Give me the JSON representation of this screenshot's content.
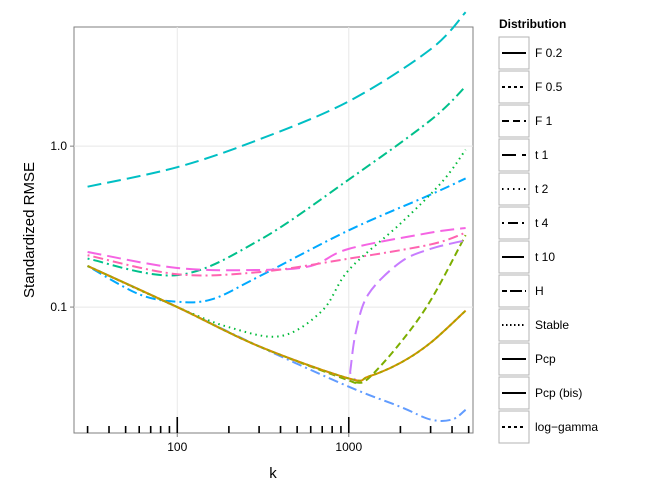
{
  "chart_data": {
    "type": "line",
    "title": "",
    "xlabel": "k",
    "ylabel": "Standardized RMSE",
    "x_scale": "log10",
    "y_scale": "log10",
    "xlim": [
      25,
      5300
    ],
    "ylim": [
      0.0165,
      5.5
    ],
    "x_ticks": [
      100,
      1000
    ],
    "x_tick_labels": [
      "100",
      "1000"
    ],
    "y_ticks": [
      0.1,
      1.0
    ],
    "y_tick_labels": [
      "0.1",
      "1.0"
    ],
    "grid": true,
    "rug": {
      "major": [
        100,
        1000
      ],
      "minor": [
        30,
        40,
        50,
        60,
        70,
        80,
        90,
        200,
        300,
        400,
        500,
        600,
        700,
        800,
        900,
        2000,
        3000,
        4000,
        5000
      ]
    },
    "legend": {
      "title": "Distribution",
      "position": "right",
      "entries": [
        {
          "label": "F 0.2",
          "linetype": "solid"
        },
        {
          "label": "F 0.5",
          "linetype": "dashed-short"
        },
        {
          "label": "F 1",
          "linetype": "dashed"
        },
        {
          "label": "t 1",
          "linetype": "longdash"
        },
        {
          "label": "t 2",
          "linetype": "dotted"
        },
        {
          "label": "t 4",
          "linetype": "dotdash"
        },
        {
          "label": "t 10",
          "linetype": "longdash-long"
        },
        {
          "label": "H",
          "linetype": "twodash"
        },
        {
          "label": "Stable",
          "linetype": "dotted-dense"
        },
        {
          "label": "Pcp",
          "linetype": "solid"
        },
        {
          "label": "Pcp (bis)",
          "linetype": "solid"
        },
        {
          "label": "log−gamma",
          "linetype": "dashed-short"
        }
      ]
    },
    "series": [
      {
        "name": "t 1",
        "color": "#00BFC4",
        "linetype": "longdash",
        "x": [
          30,
          100,
          300,
          1000,
          3000,
          4800
        ],
        "y": [
          0.56,
          0.74,
          1.1,
          1.9,
          4.0,
          6.8
        ]
      },
      {
        "name": "t 2",
        "color": "#00C08B",
        "linetype": "dotdash",
        "x": [
          30,
          100,
          300,
          1000,
          3000,
          4800
        ],
        "y": [
          0.2,
          0.158,
          0.26,
          0.62,
          1.45,
          2.35
        ]
      },
      {
        "name": "t 4",
        "color": "#00A9FF",
        "linetype": "dotdash",
        "x": [
          30,
          60,
          100,
          160,
          300,
          1000,
          3000,
          4800
        ],
        "y": [
          0.18,
          0.12,
          0.108,
          0.112,
          0.155,
          0.3,
          0.5,
          0.63
        ]
      },
      {
        "name": "t 10",
        "color": "#F564E3",
        "linetype": "longdash",
        "x": [
          30,
          100,
          300,
          600,
          1000,
          3000,
          4800
        ],
        "y": [
          0.22,
          0.175,
          0.17,
          0.18,
          0.23,
          0.29,
          0.31
        ]
      },
      {
        "name": "H",
        "color": "#FF64B0",
        "linetype": "dotdash",
        "x": [
          30,
          100,
          300,
          1000,
          3000,
          4800
        ],
        "y": [
          0.21,
          0.16,
          0.165,
          0.2,
          0.245,
          0.29
        ]
      },
      {
        "name": "Stable",
        "color": "#00BA38",
        "linetype": "dotted",
        "x": [
          30,
          100,
          200,
          400,
          700,
          1000,
          2000,
          3500,
          4800
        ],
        "y": [
          0.18,
          0.1,
          0.075,
          0.066,
          0.095,
          0.17,
          0.33,
          0.6,
          0.95
        ]
      },
      {
        "name": "F 1",
        "color": "#7CAE00",
        "linetype": "dashed",
        "x": [
          30,
          100,
          300,
          1000,
          1100,
          1300,
          2000,
          3000,
          4800
        ],
        "y": [
          0.18,
          0.1,
          0.057,
          0.035,
          0.034,
          0.036,
          0.06,
          0.11,
          0.28
        ]
      },
      {
        "name": "Pcp",
        "color": "#C77CFF",
        "linetype": "longdash",
        "x": [
          30,
          100,
          300,
          1000,
          1020,
          1100,
          1300,
          2000,
          3000,
          4800
        ],
        "y": [
          0.18,
          0.1,
          0.057,
          0.036,
          0.04,
          0.07,
          0.12,
          0.19,
          0.23,
          0.26
        ]
      },
      {
        "name": "log−gamma",
        "color": "#619CFF",
        "linetype": "dotdash",
        "x": [
          30,
          100,
          300,
          1000,
          2000,
          3000,
          4000,
          4800
        ],
        "y": [
          0.18,
          0.1,
          0.057,
          0.032,
          0.024,
          0.02,
          0.02,
          0.023
        ]
      },
      {
        "name": "F 0.2",
        "color": "#D89000",
        "linetype": "solid",
        "x": [
          30,
          100,
          300,
          1000,
          1300,
          2000,
          3000,
          4800
        ],
        "y": [
          0.18,
          0.1,
          0.057,
          0.036,
          0.037,
          0.045,
          0.06,
          0.095
        ]
      },
      {
        "name": "F 0.5",
        "color": "#A3A500",
        "linetype": "dashed-short",
        "x": [
          30,
          100,
          300,
          1000,
          1300,
          2000,
          3000,
          4800
        ],
        "y": [
          0.18,
          0.1,
          0.057,
          0.036,
          0.037,
          0.045,
          0.06,
          0.095
        ]
      }
    ]
  }
}
